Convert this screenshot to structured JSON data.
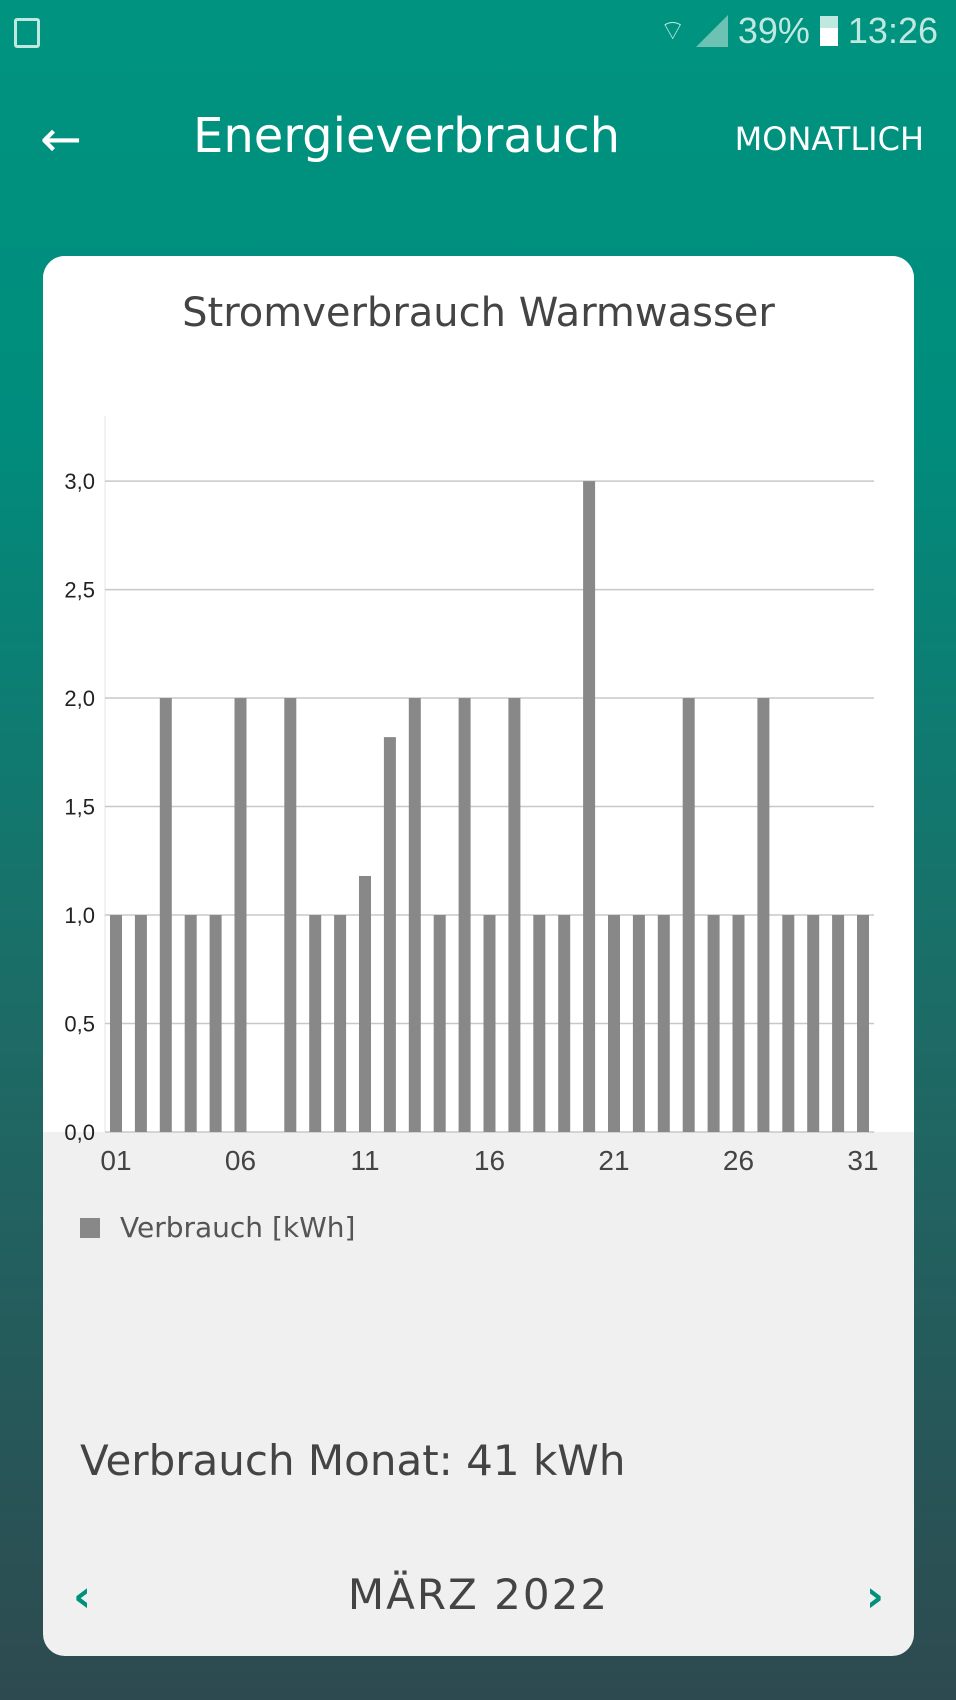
{
  "status": {
    "battery": "39%",
    "time": "13:26",
    "icons": [
      "gallery-icon",
      "wifi-icon",
      "signal-icon",
      "battery-icon"
    ]
  },
  "appbar": {
    "title": "Energieverbrauch",
    "mode": "MONATLICH",
    "back_icon": "arrow-left-icon"
  },
  "card": {
    "total": "Verbrauch Monat: 41 kWh",
    "month": "MÄRZ 2022"
  },
  "colors": {
    "accent": "#00917c",
    "bar": "#888888"
  },
  "chart_data": {
    "type": "bar",
    "title": "Stromverbrauch Warmwasser",
    "categories": [
      "01",
      "02",
      "03",
      "04",
      "05",
      "06",
      "07",
      "08",
      "09",
      "10",
      "11",
      "12",
      "13",
      "14",
      "15",
      "16",
      "17",
      "18",
      "19",
      "20",
      "21",
      "22",
      "23",
      "24",
      "25",
      "26",
      "27",
      "28",
      "29",
      "30",
      "31"
    ],
    "series": [
      {
        "name": "Verbrauch [kWh]",
        "values": [
          1,
          1,
          2,
          1,
          1,
          2,
          0,
          2,
          1,
          1,
          1.18,
          1.82,
          2,
          1,
          2,
          1,
          2,
          1,
          1,
          3,
          1,
          1,
          1,
          2,
          1,
          1,
          2,
          1,
          1,
          1,
          1
        ]
      }
    ],
    "xtick_labels": [
      "01",
      "06",
      "11",
      "16",
      "21",
      "26",
      "31"
    ],
    "ytick_labels": [
      "0,0",
      "0,5",
      "1,0",
      "1,5",
      "2,0",
      "2,5",
      "3,0"
    ],
    "yticks": [
      0,
      0.5,
      1,
      1.5,
      2,
      2.5,
      3
    ],
    "ylim": [
      0,
      3.3
    ],
    "grid": true,
    "legend": "bottom-left"
  }
}
